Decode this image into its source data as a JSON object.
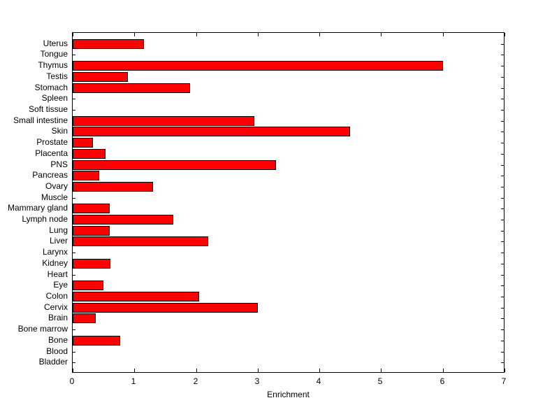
{
  "figure": {
    "background_color": "#ffffff",
    "axis_color": "#000000",
    "text_color": "#000000"
  },
  "chart_data": {
    "type": "bar",
    "orientation": "horizontal",
    "title": "",
    "xlabel": "Enrichment",
    "ylabel": "",
    "xlim": [
      0,
      7
    ],
    "xticks": [
      "0",
      "1",
      "2",
      "3",
      "4",
      "5",
      "6",
      "7"
    ],
    "grid": false,
    "legend": null,
    "bar_color": "#ff0000",
    "bar_edge_color": "#000000",
    "categories_top_to_bottom": [
      "Uterus",
      "Tongue",
      "Thymus",
      "Testis",
      "Stomach",
      "Spleen",
      "Soft tissue",
      "Small intestine",
      "Skin",
      "Prostate",
      "Placenta",
      "PNS",
      "Pancreas",
      "Ovary",
      "Muscle",
      "Mammary gland",
      "Lymph node",
      "Lung",
      "Liver",
      "Larynx",
      "Kidney",
      "Heart",
      "Eye",
      "Colon",
      "Cervix",
      "Brain",
      "Bone marrow",
      "Bone",
      "Blood",
      "Bladder"
    ],
    "values_top_to_bottom": [
      1.15,
      0,
      6.0,
      0.9,
      1.9,
      0,
      0,
      2.95,
      4.5,
      0.33,
      0.53,
      3.3,
      0.43,
      1.3,
      0,
      0.6,
      1.63,
      0.6,
      2.2,
      0,
      0.61,
      0,
      0.5,
      2.05,
      3.0,
      0.37,
      0,
      0.77,
      0,
      0
    ]
  }
}
